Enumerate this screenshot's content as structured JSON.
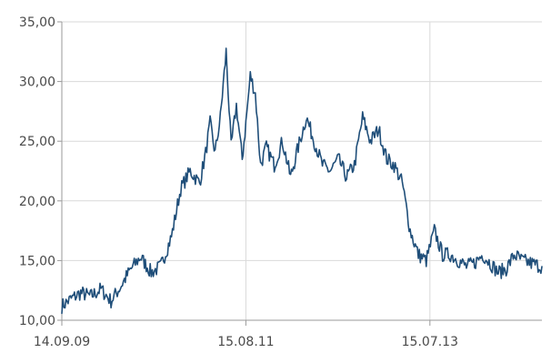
{
  "chart_data": {
    "type": "line",
    "title": "",
    "xlabel": "",
    "ylabel": "",
    "x_tick_labels": [
      "14.09.09",
      "15.08.11",
      "15.07.13"
    ],
    "y_tick_labels": [
      "10,00",
      "15,00",
      "20,00",
      "25,00",
      "30,00",
      "35,00"
    ],
    "ylim": [
      10,
      35
    ],
    "xlim": [
      "2009-09-14",
      "2014-09-14"
    ],
    "grid": true,
    "legend": "none",
    "line_color": "#1f4e79",
    "series": [
      {
        "x": [
          "2009-09-14",
          "2009-10-20",
          "2009-11-25",
          "2010-01-01",
          "2010-02-10",
          "2010-03-20",
          "2010-04-25",
          "2010-06-01",
          "2010-07-10",
          "2010-08-20",
          "2010-09-25",
          "2010-11-05",
          "2010-12-10",
          "2011-01-15",
          "2011-02-20",
          "2011-03-15",
          "2011-04-01",
          "2011-04-20",
          "2011-05-10",
          "2011-06-01",
          "2011-06-20",
          "2011-07-10",
          "2011-08-01",
          "2011-08-15",
          "2011-09-01",
          "2011-09-20",
          "2011-10-10",
          "2011-11-01",
          "2011-12-01",
          "2012-01-01",
          "2012-02-01",
          "2012-03-01",
          "2012-04-01",
          "2012-05-01",
          "2012-06-01",
          "2012-07-01",
          "2012-08-01",
          "2012-09-01",
          "2012-10-01",
          "2012-11-01",
          "2012-12-01",
          "2013-01-01",
          "2013-02-01",
          "2013-03-01",
          "2013-04-01",
          "2013-05-01",
          "2013-06-01",
          "2013-07-01",
          "2013-08-01",
          "2013-09-01",
          "2013-10-01",
          "2013-11-01",
          "2013-12-01",
          "2014-01-01",
          "2014-02-01",
          "2014-03-01",
          "2014-04-01",
          "2014-05-01",
          "2014-06-01",
          "2014-07-01",
          "2014-08-01",
          "2014-09-14"
        ],
        "values": [
          11.2,
          11.8,
          12.3,
          12.0,
          12.6,
          11.6,
          12.8,
          14.2,
          15.3,
          14.0,
          14.5,
          17.0,
          21.0,
          22.5,
          21.5,
          24.0,
          26.5,
          24.0,
          27.0,
          32.5,
          24.5,
          28.0,
          23.5,
          26.5,
          30.5,
          29.0,
          23.0,
          24.5,
          23.0,
          25.0,
          22.0,
          24.5,
          27.0,
          25.0,
          23.0,
          22.5,
          23.5,
          22.0,
          23.0,
          27.0,
          25.0,
          26.0,
          23.5,
          23.0,
          21.5,
          17.5,
          15.5,
          15.0,
          17.5,
          15.5,
          15.5,
          15.0,
          14.5,
          14.8,
          15.5,
          14.8,
          14.0,
          14.3,
          15.5,
          15.0,
          14.8,
          14.5
        ]
      }
    ]
  }
}
